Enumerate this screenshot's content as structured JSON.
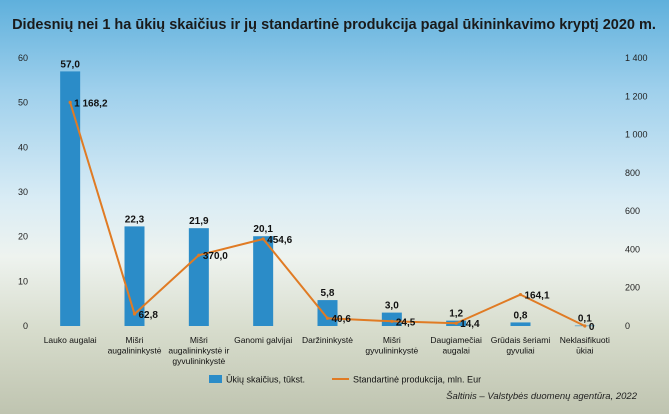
{
  "chart_data": {
    "type": "bar",
    "title": "Didesnių nei 1 ha ūkių skaičius ir jų standartinė produkcija pagal ūkininkavimo kryptį 2020 m.",
    "categories": [
      [
        "Lauko augalai"
      ],
      [
        "Mišri",
        "augalininkystė"
      ],
      [
        "Mišri",
        "augalininkystė ir",
        "gyvulininkystė"
      ],
      [
        "Ganomi galvijai"
      ],
      [
        "Daržininkystė"
      ],
      [
        "Mišri",
        "gyvulininkystė"
      ],
      [
        "Daugiamečiai",
        "augalai"
      ],
      [
        "Grūdais šeriami",
        "gyvuliai"
      ],
      [
        "Neklasifikuoti",
        "ūkiai"
      ]
    ],
    "series": [
      {
        "name": "Ūkių skaičius, tūkst.",
        "type": "bar",
        "axis": "left",
        "color": "#2b8cc8",
        "values": [
          57.0,
          22.3,
          21.9,
          20.1,
          5.8,
          3.0,
          1.2,
          0.8,
          0.1
        ],
        "labels": [
          "57,0",
          "22,3",
          "21,9",
          "20,1",
          "5,8",
          "3,0",
          "1,2",
          "0,8",
          "0,1"
        ]
      },
      {
        "name": "Standartinė produkcija, mln. Eur",
        "type": "line",
        "axis": "right",
        "color": "#e07b24",
        "values": [
          1168.2,
          62.8,
          370.0,
          454.6,
          40.6,
          24.5,
          14.4,
          164.1,
          0
        ],
        "labels": [
          "1 168,2",
          "62,8",
          "370,0",
          "454,6",
          "40,6",
          "24,5",
          "14,4",
          "164,1",
          "0"
        ]
      }
    ],
    "yleft": {
      "lim": [
        0,
        60
      ],
      "ticks": [
        0,
        10,
        20,
        30,
        40,
        50,
        60
      ],
      "tick_labels": [
        "0",
        "10",
        "20",
        "30",
        "40",
        "50",
        "60"
      ]
    },
    "yright": {
      "lim": [
        0,
        1400
      ],
      "ticks": [
        0,
        200,
        400,
        600,
        800,
        1000,
        1200,
        1400
      ],
      "tick_labels": [
        "0",
        "200",
        "400",
        "600",
        "800",
        "1 000",
        "1 200",
        "1 400"
      ]
    },
    "grid": false,
    "legend_position": "bottom",
    "source": "Šaltinis – Valstybės duomenų agentūra, 2022"
  }
}
